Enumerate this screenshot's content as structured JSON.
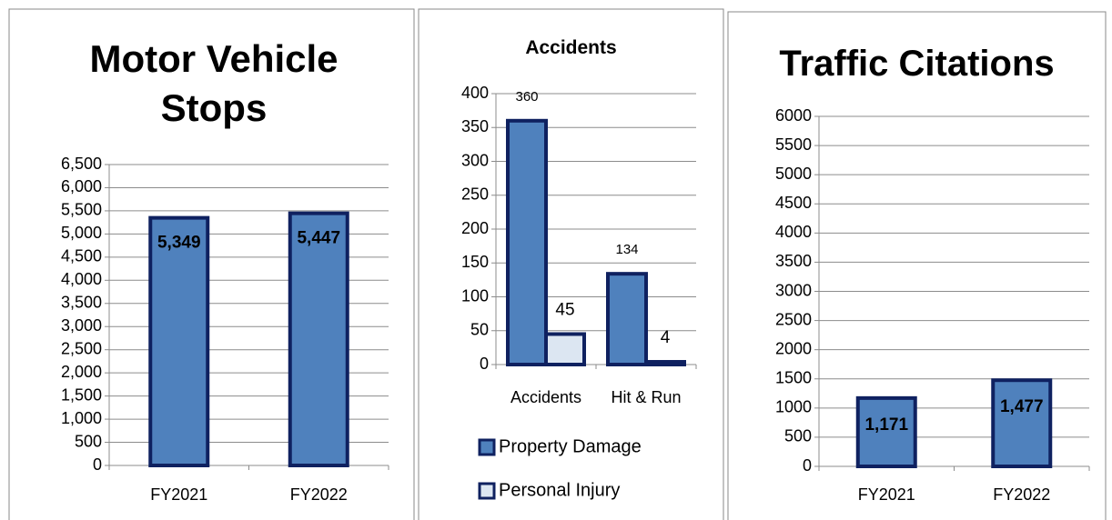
{
  "chart_data": [
    {
      "type": "bar",
      "title": "Motor Vehicle Stops",
      "categories": [
        "FY2021",
        "FY2022"
      ],
      "values": [
        5349,
        5447
      ],
      "value_labels": [
        "5,349",
        "5,447"
      ],
      "color": "#4f81bd",
      "ylim": [
        0,
        6500
      ],
      "yticks": [
        0,
        500,
        {
          "value": 1000,
          "label": "1,000"
        },
        {
          "value": 1500,
          "label": "1,500"
        },
        {
          "value": 2000,
          "label": "2,000"
        },
        {
          "value": 2500,
          "label": "2,500"
        },
        {
          "value": 3000,
          "label": "3,000"
        },
        {
          "value": 3500,
          "label": "3,500"
        },
        {
          "value": 4000,
          "label": "4,000"
        },
        {
          "value": 4500,
          "label": "4,500"
        },
        {
          "value": 5000,
          "label": "5,000"
        },
        {
          "value": 5500,
          "label": "5,500"
        },
        {
          "value": 6000,
          "label": "6,000"
        },
        {
          "value": 6500,
          "label": "6,500"
        }
      ],
      "grid": true
    },
    {
      "type": "grouped_bar",
      "title": "Accidents",
      "categories": [
        "Accidents",
        "Hit & Run"
      ],
      "series": [
        {
          "name": "Property Damage",
          "color": "#4f81bd",
          "values": [
            360,
            134
          ]
        },
        {
          "name": "Personal Injury",
          "color": "#dce6f2",
          "values": [
            45,
            4
          ]
        }
      ],
      "ylim": [
        0,
        400
      ],
      "yticks": [
        0,
        50,
        100,
        150,
        200,
        250,
        300,
        350,
        400
      ],
      "grid": true,
      "legend": "bottom"
    },
    {
      "type": "bar",
      "title": "Traffic Citations",
      "categories": [
        "FY2021",
        "FY2022"
      ],
      "values": [
        1171,
        1477
      ],
      "value_labels": [
        "1,171",
        "1,477"
      ],
      "color": "#4f81bd",
      "ylim": [
        0,
        6000
      ],
      "yticks": [
        0,
        500,
        1000,
        1500,
        2000,
        2500,
        3000,
        3500,
        4000,
        4500,
        5000,
        5500,
        6000
      ],
      "grid": true
    }
  ]
}
